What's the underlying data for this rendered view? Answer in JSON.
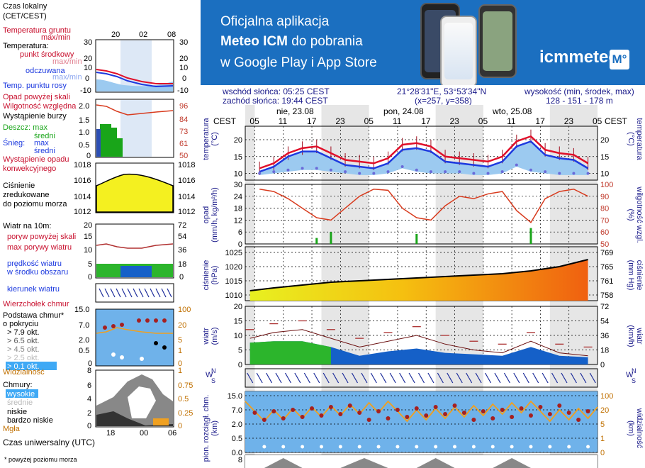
{
  "banner": {
    "line1": "Oficjalna aplikacja",
    "line2_bold": "Meteo ICM",
    "line2_rest": " do pobrania",
    "line3": "w Google Play i App Store",
    "logo_text": "icmmeteo",
    "logo_box": "M°"
  },
  "info": {
    "sunrise": "wschód słońca: 05:25 CEST",
    "sunset": "zachód słońca: 19:44 CEST",
    "coords": "21°28'31\"E, 53°53'34\"N",
    "grid": "(x=257,  y=358)",
    "height_label": "wysokość (min, środek, max)",
    "height_values": "128 - 151 - 178 m"
  },
  "legend": {
    "tz_title_1": "Czas lokalny",
    "tz_title_2": "(CET/CEST)",
    "local_ticks": [
      "20",
      "02",
      "08"
    ],
    "utc_ticks": [
      "18",
      "00",
      "06"
    ],
    "temp_ground_1": "Temperatura gruntu",
    "temp_ground_2": "max/min",
    "temp_title": "Temperatura:",
    "temp_mid": "punkt środkowy",
    "temp_maxmin": "max/min",
    "temp_feel": "odczuwana",
    "temp_feel_maxmin": "max/min",
    "temp_dew": "Temp. punktu rosy",
    "temp_y": [
      "30",
      "20",
      "10",
      "0",
      "-10"
    ],
    "precip_hi": "Opad powyżej skali",
    "humidity": "Wilgotność względna",
    "storm": "Wystąpienie burzy",
    "rain": "Deszcz: max",
    "rain_mid": "średni",
    "snow": "Śnieg:",
    "snow_max": "max",
    "snow_mid": "średni",
    "precip_conv_1": "Wystąpienie opadu",
    "precip_conv_2": "konwekcyjnego",
    "precip_y": [
      "2.0",
      "1.5",
      "1.0",
      "0.5",
      "0"
    ],
    "precip_y2": [
      "96",
      "84",
      "73",
      "61",
      "50"
    ],
    "press_y": [
      "1018",
      "1016",
      "1014",
      "1012"
    ],
    "press_1": "Ciśnienie",
    "press_2": "zredukowane",
    "press_3": "do poziomu morza",
    "wind_title": "Wiatr na 10m:",
    "wind_gust_hi": "poryw powyżej skali",
    "wind_gust": "max porywy wiatru",
    "wind_speed_1": "prędkość wiatru",
    "wind_speed_2": "w środku obszaru",
    "wind_y": [
      "20",
      "15",
      "10",
      "5",
      "0"
    ],
    "wind_y2": [
      "72",
      "54",
      "36",
      "18",
      "0"
    ],
    "wind_dir": "kierunek wiatru",
    "cloud_top": "Wierzchołek chmur",
    "cloud_base_1": "Podstawa chmur*",
    "cloud_base_2": "o pokryciu",
    "cloud_c1": "> 7.9 okt.",
    "cloud_c2": "> 6.5 okt.",
    "cloud_c3": "> 4.5 okt.",
    "cloud_c4": "> 2.5 okt.",
    "cloud_c5": "> 0.1 okt.",
    "cloud_y": [
      "15.0",
      "7.0",
      "2.0",
      "0.5",
      "0"
    ],
    "cloud_y2": [
      "100",
      "20",
      "5",
      "1",
      "0"
    ],
    "visibility": "Widzialność",
    "clouds_title": "Chmury:",
    "cl_high": "wysokie",
    "cl_mid": "średnie",
    "cl_low": "niskie",
    "cl_vlow": "bardzo niskie",
    "fog": "Mgła",
    "cl_y": [
      "8",
      "6",
      "4",
      "2",
      "0"
    ],
    "cl_y2": [
      "1",
      "0.75",
      "0.5",
      "0.25",
      "0"
    ],
    "utc_label": "Czas uniwersalny (UTC)",
    "note": "* powyżej poziomu morza"
  },
  "main": {
    "tz_left": "CEST",
    "tz_right": "CEST",
    "days": [
      "nie, 23.08",
      "pon, 24.08",
      "wto, 25.08"
    ],
    "hour_ticks": [
      "05",
      "11",
      "17",
      "23",
      "05",
      "11",
      "17",
      "23",
      "05",
      "11",
      "17",
      "23",
      "05"
    ],
    "temp": {
      "ylabel": "temperatura",
      "unit": "(°C)",
      "y": [
        "20",
        "15",
        "10"
      ]
    },
    "precip": {
      "ylabel": "opad",
      "unit": "(mm/h, kg/m²/h)",
      "y": [
        "30",
        "24",
        "18",
        "12",
        "6",
        "0"
      ],
      "y2": [
        "100",
        "90",
        "80",
        "70",
        "60",
        "50"
      ],
      "y2label": "wilgotność wzgl.",
      "y2unit": "(%)"
    },
    "pressure": {
      "ylabel": "ciśnienie",
      "unit": "(hPa)",
      "y": [
        "1025",
        "1020",
        "1015",
        "1010"
      ],
      "y2": [
        "769",
        "765",
        "761",
        "758"
      ],
      "y2label": "ciśnienie",
      "y2unit": "(mm Hg)"
    },
    "wind": {
      "ylabel": "wiatr",
      "unit": "(m/s)",
      "y": [
        "20",
        "15",
        "10",
        "5",
        "0"
      ],
      "y2": [
        "72",
        "54",
        "36",
        "18",
        "0"
      ],
      "y2label": "wiatr",
      "y2unit": "(km/h)"
    },
    "wdir": {
      "left": "W",
      "right": "W",
      "n": "N",
      "s": "S"
    },
    "cloud": {
      "ylabel": "pion. rozciągł. chm.",
      "unit": "(km)",
      "y": [
        "15.0",
        "7.0",
        "2.0",
        "0.5",
        "0.0"
      ],
      "y2": [
        "100",
        "20",
        "5",
        "1",
        "0"
      ],
      "y2label": "widzialność",
      "y2unit": "(km)"
    },
    "clouds": {
      "y": [
        "8"
      ]
    }
  },
  "colors": {
    "temp": "#e0102a",
    "feel": "#1d3adf",
    "dew": "#6a6ad8",
    "humidity": "#d83b1e",
    "rain": "#19a519",
    "wind_green": "#2cb52c",
    "wind_blue": "#1560c8",
    "sky": "#6fb2ea",
    "visibility": "#f0a020"
  },
  "chart_data": [
    {
      "type": "line",
      "title": "",
      "ylabel": "temperatura (°C)",
      "ylim": [
        8,
        24
      ],
      "x": [
        3,
        6,
        9,
        12,
        15,
        18,
        21,
        24,
        27,
        30,
        33,
        36,
        39,
        42,
        45,
        48,
        51,
        54,
        57,
        60,
        63,
        66,
        69,
        72
      ],
      "series": [
        {
          "name": "temperatura punkt środkowy",
          "values": [
            11.5,
            13.0,
            16.0,
            17.5,
            18.0,
            16.0,
            14.0,
            13.5,
            13.0,
            14.5,
            18.5,
            19.0,
            18.0,
            15.0,
            14.5,
            14.0,
            13.5,
            15.0,
            19.5,
            21.0,
            17.0,
            16.0,
            15.5,
            13.0
          ]
        },
        {
          "name": "temperatura odczuwana",
          "values": [
            10.5,
            12.0,
            15.0,
            16.5,
            16.5,
            14.5,
            12.5,
            12.0,
            11.5,
            13.0,
            17.0,
            17.5,
            16.5,
            13.5,
            13.0,
            12.5,
            12.0,
            13.5,
            18.0,
            19.5,
            15.5,
            14.5,
            14.0,
            11.5
          ]
        },
        {
          "name": "temp. punktu rosy",
          "values": [
            10.0,
            10.5,
            11.0,
            11.5,
            11.5,
            11.0,
            10.5,
            10.0,
            10.0,
            10.5,
            12.0,
            11.0,
            10.5,
            10.5,
            10.5,
            10.0,
            10.0,
            10.5,
            12.5,
            11.0,
            10.5,
            10.0,
            10.0,
            10.0
          ]
        }
      ]
    },
    {
      "type": "line",
      "title": "",
      "ylabel": "opad (mm/h, kg/m²/h)",
      "ylim": [
        0,
        30
      ],
      "x": [
        3,
        6,
        9,
        12,
        15,
        18,
        21,
        24,
        27,
        30,
        33,
        36,
        39,
        42,
        45,
        48,
        51,
        54,
        57,
        60,
        63,
        66,
        69,
        72
      ],
      "series": [
        {
          "name": "wilgotność względna",
          "values": [
            96,
            94,
            88,
            80,
            72,
            70,
            80,
            90,
            96,
            95,
            80,
            72,
            70,
            82,
            90,
            88,
            92,
            94,
            78,
            68,
            88,
            94,
            96,
            90
          ]
        },
        {
          "name": "opad",
          "values": [
            0,
            0,
            0,
            0,
            3,
            6,
            0,
            0,
            0,
            0,
            0,
            5,
            0,
            0,
            0,
            0,
            0,
            0,
            0,
            8,
            0,
            0,
            0,
            0
          ]
        }
      ]
    },
    {
      "type": "area",
      "title": "",
      "ylabel": "ciśnienie (hPa)",
      "ylim": [
        1008,
        1027
      ],
      "x": [
        1,
        6,
        12,
        18,
        24,
        30,
        36,
        42,
        48,
        54,
        60,
        66,
        72
      ],
      "series": [
        {
          "name": "ciśnienie",
          "values": [
            1011.5,
            1012.5,
            1013.5,
            1014.5,
            1015.0,
            1015.5,
            1016.0,
            1016.5,
            1017.0,
            1017.5,
            1018.5,
            1020.0,
            1022.5
          ]
        }
      ]
    },
    {
      "type": "area",
      "title": "",
      "ylabel": "wiatr (m/s)",
      "ylim": [
        0,
        20
      ],
      "x": [
        1,
        6,
        12,
        18,
        24,
        30,
        36,
        42,
        48,
        54,
        60,
        66,
        72
      ],
      "series": [
        {
          "name": "prędkość wiatru",
          "values": [
            7.5,
            8.0,
            8.0,
            6.0,
            3.0,
            4.5,
            5.5,
            4.0,
            3.5,
            3.0,
            6.0,
            3.0,
            2.5
          ]
        },
        {
          "name": "max porywy wiatru",
          "values": [
            12,
            14,
            15,
            12,
            9,
            11,
            13,
            10,
            8,
            7,
            11,
            7,
            6
          ]
        }
      ]
    }
  ]
}
